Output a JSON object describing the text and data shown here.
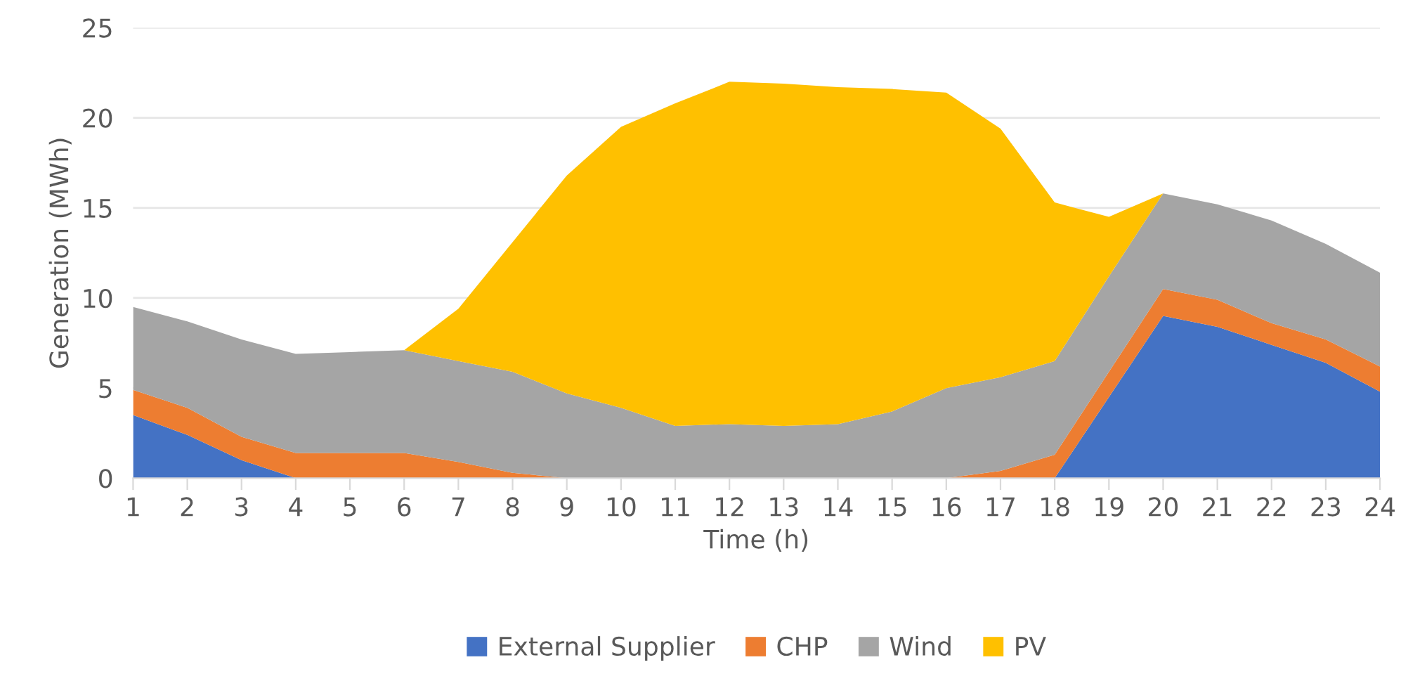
{
  "chart_data": {
    "type": "area",
    "stacked": true,
    "xlabel": "Time (h)",
    "ylabel": "Generation (MWh)",
    "x": [
      1,
      2,
      3,
      4,
      5,
      6,
      7,
      8,
      9,
      10,
      11,
      12,
      13,
      14,
      15,
      16,
      17,
      18,
      19,
      20,
      21,
      22,
      23,
      24
    ],
    "xlim": [
      1,
      24
    ],
    "xticks": [
      1,
      2,
      3,
      4,
      5,
      6,
      7,
      8,
      9,
      10,
      11,
      12,
      13,
      14,
      15,
      16,
      17,
      18,
      19,
      20,
      21,
      22,
      23,
      24
    ],
    "ylim": [
      0,
      25
    ],
    "yticks": [
      0,
      5,
      10,
      15,
      20,
      25
    ],
    "grid": "y",
    "legend": "bottom",
    "series": [
      {
        "name": "External Supplier",
        "color": "#4472c4",
        "values": [
          3.5,
          2.4,
          1.0,
          0,
          0,
          0,
          0,
          0,
          0,
          0,
          0,
          0,
          0,
          0,
          0,
          0,
          0,
          0,
          4.5,
          9.0,
          8.4,
          7.4,
          6.4,
          4.8
        ]
      },
      {
        "name": "CHP",
        "color": "#ed7d31",
        "values": [
          1.4,
          1.5,
          1.3,
          1.4,
          1.4,
          1.4,
          0.9,
          0.3,
          0,
          0,
          0,
          0,
          0,
          0,
          0,
          0,
          0.4,
          1.3,
          1.4,
          1.5,
          1.5,
          1.2,
          1.3,
          1.4
        ]
      },
      {
        "name": "Wind",
        "color": "#a5a5a5",
        "values": [
          4.6,
          4.8,
          5.4,
          5.5,
          5.6,
          5.7,
          5.6,
          5.6,
          4.7,
          3.9,
          2.9,
          3.0,
          2.9,
          3.0,
          3.7,
          5.0,
          5.2,
          5.2,
          5.3,
          5.3,
          5.3,
          5.7,
          5.3,
          5.2
        ]
      },
      {
        "name": "PV",
        "color": "#ffc000",
        "values": [
          0,
          0,
          0,
          0,
          0,
          0,
          2.9,
          7.2,
          12.1,
          15.6,
          17.9,
          19.0,
          19.0,
          18.7,
          17.9,
          16.4,
          13.8,
          8.8,
          3.3,
          0,
          0,
          0,
          0,
          0
        ]
      }
    ]
  }
}
